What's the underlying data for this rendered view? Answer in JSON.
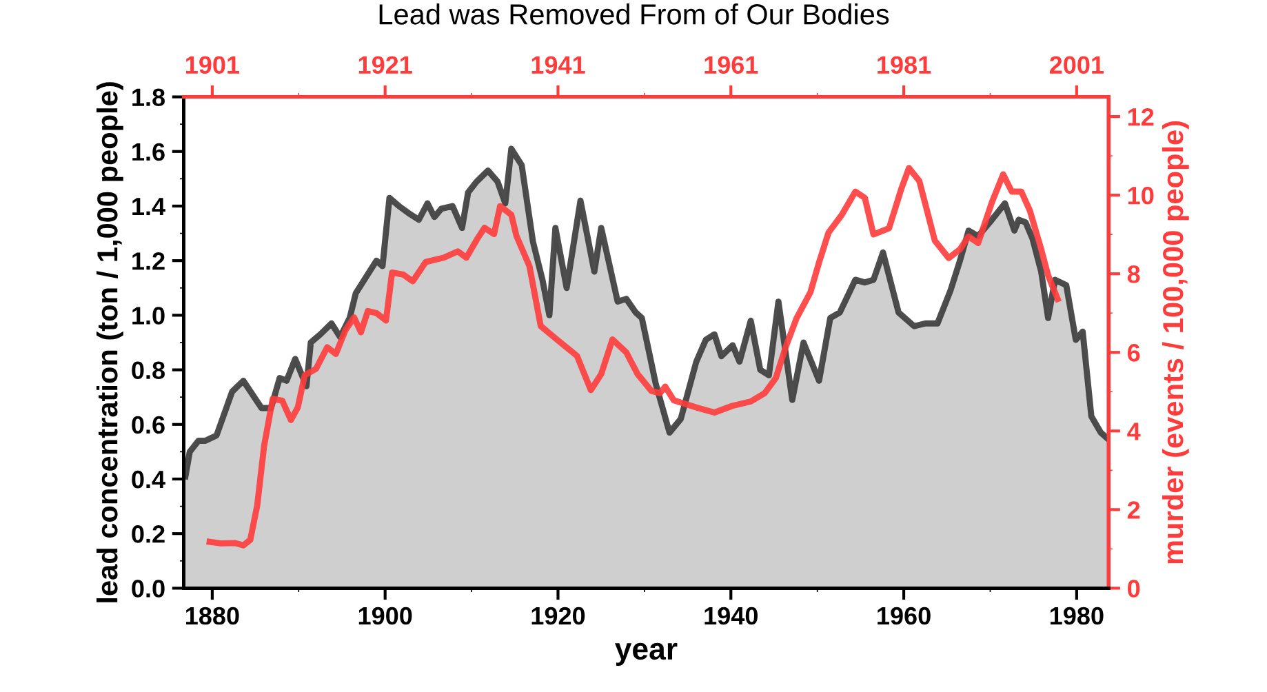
{
  "chart_data": {
    "type": "line",
    "title": "Lead was Removed From of Our Bodies",
    "xlabel": "year",
    "ylabel": "lead concentration (ton / 1,000 people)",
    "y2label": "murder (events / 100,000 people)",
    "xlim": [
      1876.7,
      1983.7
    ],
    "xticks": [
      1880,
      1900,
      1920,
      1940,
      1960,
      1980
    ],
    "x2lim": [
      1897.7,
      2004.7
    ],
    "x2ticks": [
      1901,
      1921,
      1941,
      1961,
      1981,
      2001
    ],
    "ylim": [
      0,
      1.8
    ],
    "yticks": [
      {
        "value": 0,
        "label": "0.0"
      },
      {
        "value": 0.2,
        "label": "0.2"
      },
      {
        "value": 0.4,
        "label": "0.4"
      },
      {
        "value": 0.6,
        "label": "0.6"
      },
      {
        "value": 0.8,
        "label": "0.8"
      },
      {
        "value": 1.0,
        "label": "1.0"
      },
      {
        "value": 1.2,
        "label": "1.2"
      },
      {
        "value": 1.4,
        "label": "1.4"
      },
      {
        "value": 1.6,
        "label": "1.6"
      },
      {
        "value": 1.8,
        "label": "1.8"
      }
    ],
    "y2lim": [
      0,
      12.5
    ],
    "y2ticks": [
      0,
      2,
      4,
      6,
      8,
      10,
      12
    ],
    "grid": false,
    "marker": "none",
    "line_style": "solid",
    "series": [
      {
        "type": "area",
        "color": "#3a3a3a",
        "x": [
          1876.9,
          1877.4,
          1878.4,
          1879.2,
          1880.5,
          1882.3,
          1883.6,
          1885.7,
          1886.8,
          1887.8,
          1888.6,
          1889.6,
          1890.9,
          1891.4,
          1892.5,
          1893.8,
          1894.8,
          1895.9,
          1896.6,
          1898.0,
          1899.0,
          1899.7,
          1900.5,
          1901.6,
          1902.9,
          1903.9,
          1904.9,
          1905.7,
          1906.5,
          1907.8,
          1908.9,
          1909.6,
          1910.6,
          1911.9,
          1913.0,
          1913.9,
          1914.6,
          1915.8,
          1917.1,
          1918.2,
          1919.0,
          1919.7,
          1921.0,
          1922.6,
          1924.2,
          1925.0,
          1926.9,
          1927.9,
          1929.0,
          1929.7,
          1931.3,
          1932.9,
          1934.2,
          1936.0,
          1937.1,
          1938.1,
          1938.9,
          1940.2,
          1941.0,
          1942.3,
          1943.4,
          1944.4,
          1945.5,
          1947.1,
          1948.4,
          1950.2,
          1951.5,
          1952.6,
          1954.4,
          1955.5,
          1956.5,
          1957.6,
          1959.4,
          1961.2,
          1962.5,
          1963.9,
          1965.4,
          1966.5,
          1967.5,
          1968.6,
          1970.2,
          1971.7,
          1972.8,
          1973.3,
          1974.1,
          1974.9,
          1975.9,
          1976.7,
          1977.5,
          1978.8,
          1979.9,
          1980.7,
          1981.7,
          1982.8,
          1983.5
        ],
        "values": [
          0.41,
          0.5,
          0.54,
          0.54,
          0.56,
          0.72,
          0.76,
          0.66,
          0.66,
          0.77,
          0.76,
          0.84,
          0.74,
          0.9,
          0.93,
          0.97,
          0.92,
          0.99,
          1.08,
          1.15,
          1.2,
          1.18,
          1.43,
          1.4,
          1.37,
          1.35,
          1.41,
          1.36,
          1.39,
          1.4,
          1.32,
          1.45,
          1.49,
          1.53,
          1.49,
          1.41,
          1.61,
          1.55,
          1.27,
          1.13,
          1.0,
          1.32,
          1.1,
          1.42,
          1.16,
          1.32,
          1.05,
          1.06,
          1.01,
          0.99,
          0.75,
          0.57,
          0.62,
          0.83,
          0.91,
          0.93,
          0.85,
          0.89,
          0.83,
          0.98,
          0.8,
          0.78,
          1.05,
          0.69,
          0.9,
          0.76,
          0.99,
          1.01,
          1.13,
          1.12,
          1.13,
          1.23,
          1.01,
          0.96,
          0.97,
          0.97,
          1.09,
          1.2,
          1.31,
          1.29,
          1.35,
          1.41,
          1.31,
          1.35,
          1.34,
          1.28,
          1.16,
          0.99,
          1.13,
          1.11,
          0.91,
          0.94,
          0.63,
          0.57,
          0.55
        ]
      },
      {
        "axis": "y2",
        "color": "#ff3b3b",
        "x": [
          1879.7,
          1881.0,
          1882.6,
          1883.6,
          1884.4,
          1885.2,
          1886.0,
          1887.0,
          1888.1,
          1889.1,
          1889.9,
          1890.7,
          1892.0,
          1893.3,
          1894.3,
          1895.4,
          1896.4,
          1897.2,
          1898.0,
          1899.0,
          1900.1,
          1900.8,
          1902.1,
          1903.2,
          1904.7,
          1906.8,
          1908.4,
          1909.4,
          1910.7,
          1911.5,
          1912.6,
          1913.3,
          1914.6,
          1915.2,
          1916.7,
          1918.0,
          1919.8,
          1922.2,
          1923.8,
          1925.0,
          1926.3,
          1927.9,
          1929.2,
          1930.8,
          1931.8,
          1932.4,
          1933.4,
          1934.7,
          1936.3,
          1938.1,
          1940.2,
          1942.3,
          1943.9,
          1945.2,
          1946.3,
          1947.6,
          1949.2,
          1950.2,
          1951.3,
          1952.8,
          1954.4,
          1955.5,
          1956.5,
          1958.3,
          1959.7,
          1960.6,
          1961.8,
          1963.6,
          1965.2,
          1966.5,
          1967.5,
          1968.6,
          1970.2,
          1971.5,
          1972.5,
          1973.6,
          1974.6,
          1975.9,
          1976.7,
          1977.8
        ],
        "values": [
          1.18,
          1.14,
          1.15,
          1.09,
          1.23,
          2.1,
          3.62,
          4.82,
          4.77,
          4.28,
          4.6,
          5.42,
          5.58,
          6.13,
          5.96,
          6.56,
          6.89,
          6.51,
          7.05,
          7.0,
          6.81,
          8.03,
          7.98,
          7.81,
          8.3,
          8.41,
          8.57,
          8.41,
          8.9,
          9.17,
          9.01,
          9.72,
          9.5,
          8.96,
          8.19,
          6.67,
          6.34,
          5.91,
          5.04,
          5.45,
          6.33,
          6.0,
          5.45,
          5.02,
          4.96,
          5.13,
          4.78,
          4.69,
          4.58,
          4.47,
          4.64,
          4.75,
          4.96,
          5.35,
          6.11,
          6.87,
          7.53,
          8.29,
          9.05,
          9.49,
          10.09,
          9.93,
          9.0,
          9.16,
          10.15,
          10.69,
          10.36,
          8.84,
          8.4,
          8.62,
          8.95,
          8.78,
          9.82,
          10.53,
          10.09,
          10.09,
          9.6,
          8.62,
          7.96,
          7.36
        ]
      }
    ]
  }
}
